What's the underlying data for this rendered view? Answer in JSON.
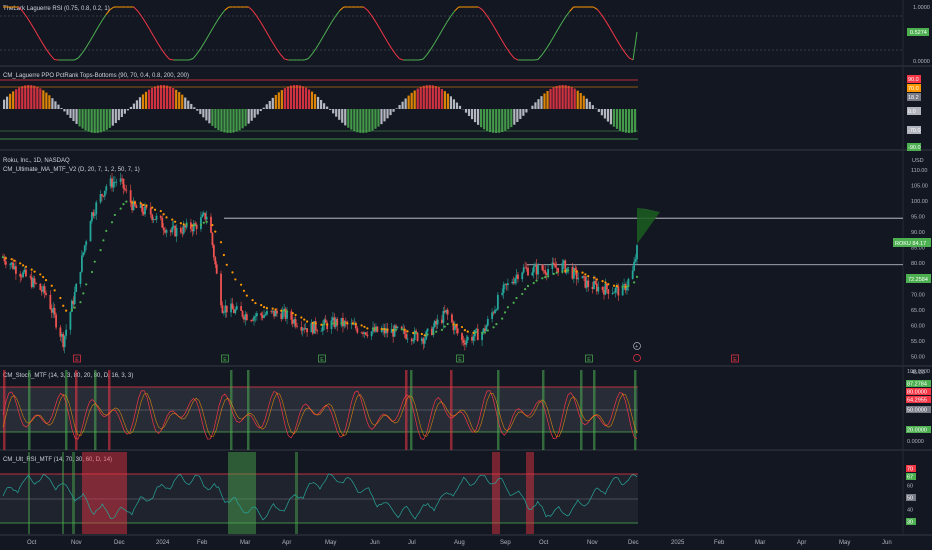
{
  "colors": {
    "background": "#131722",
    "up": "#26a69a",
    "down": "#ef5350",
    "ma_up": "#4caf50",
    "ma_down": "#ff9800",
    "rsi_up": "#4caf50",
    "rsi_down": "#f23645",
    "overbought": "#ff9800",
    "grid": "#1e222d"
  },
  "panes": {
    "rsi": {
      "title": "TheLark Laguerre RSI (0.75, 0.8, 0.2, 1)",
      "ticks": [
        "1.0000",
        "0.0000"
      ],
      "last_value_label": "0.5274"
    },
    "ppo": {
      "title": "CM_Laguerre PPO PctRank Tops-Bottoms (90, 70, 0.4, 0.8, 200, 200)",
      "tick_labels": [
        "90.0",
        "70.0",
        "18.2",
        "0.0",
        "-70.0",
        "-90.0"
      ],
      "colored": [
        {
          "label": "90.0",
          "color": "#f23645"
        },
        {
          "label": "70.0",
          "color": "#ff9800"
        },
        {
          "label": "18.2",
          "color": "#787b86"
        },
        {
          "label": "0.0",
          "color": "#b2b5be"
        },
        {
          "label": "-70.0",
          "color": "#b2b5be"
        },
        {
          "label": "-90.0",
          "color": "#4caf50"
        }
      ]
    },
    "price": {
      "currency": "USD",
      "symbol_line": "Roku, Inc., 1D, NASDAQ",
      "indicator_line": "CM_Ultimate_MA_MTF_V2 (D, 20, 7, 1, 2, 50, 7, 1)",
      "ticks": [
        "110.00",
        "105.00",
        "100.00",
        "95.00",
        "90.00",
        "85.00",
        "80.00",
        "75.00",
        "70.00",
        "65.00",
        "60.00",
        "55.00",
        "50.00",
        "45.00"
      ],
      "last_price_tag": "ROKU 84.17",
      "ma_tag": "72.2584"
    },
    "stoch": {
      "title": "CM_Stoch_MTF (14, 3, 3, 80, 20, 80, D, 16, 3, 3)",
      "ticks": [
        "100.0000",
        "0.0000"
      ],
      "tags": [
        "87.2784",
        "80.0000",
        "64.2955",
        "50.0000",
        "20.0000"
      ]
    },
    "ultrsi": {
      "title": "CM_Ult_RSI_MTF (14, 70, 30, 60, D, 14)",
      "ticks": [
        "70",
        "67",
        "60",
        "50",
        "40",
        "30"
      ]
    }
  },
  "time_axis": [
    "Oct",
    "Nov",
    "Dec",
    "2024",
    "Feb",
    "Mar",
    "Apr",
    "May",
    "Jun",
    "Jul",
    "Aug",
    "Sep",
    "Oct",
    "Nov",
    "Dec",
    "2025",
    "Feb",
    "Mar",
    "Apr",
    "May",
    "Jun"
  ],
  "events": [
    "E",
    "E",
    "E",
    "E",
    "E",
    "E"
  ],
  "chart_data": {
    "type": "candlestick",
    "symbol": "ROKU",
    "exchange": "NASDAQ",
    "interval": "1D",
    "ylim": [
      44,
      112
    ],
    "price_points": [
      {
        "date": "2023-09-20",
        "close": 82
      },
      {
        "date": "2023-10-05",
        "close": 76
      },
      {
        "date": "2023-10-20",
        "close": 70
      },
      {
        "date": "2023-11-01",
        "close": 55
      },
      {
        "date": "2023-11-10",
        "close": 72
      },
      {
        "date": "2023-11-20",
        "close": 95
      },
      {
        "date": "2023-12-01",
        "close": 105
      },
      {
        "date": "2023-12-10",
        "close": 107
      },
      {
        "date": "2023-12-20",
        "close": 98
      },
      {
        "date": "2024-01-01",
        "close": 96
      },
      {
        "date": "2024-01-15",
        "close": 90
      },
      {
        "date": "2024-02-01",
        "close": 92
      },
      {
        "date": "2024-02-10",
        "close": 96
      },
      {
        "date": "2024-02-16",
        "close": 76
      },
      {
        "date": "2024-02-20",
        "close": 66
      },
      {
        "date": "2024-03-10",
        "close": 63
      },
      {
        "date": "2024-04-01",
        "close": 64
      },
      {
        "date": "2024-04-20",
        "close": 59
      },
      {
        "date": "2024-05-10",
        "close": 61
      },
      {
        "date": "2024-06-01",
        "close": 58
      },
      {
        "date": "2024-06-20",
        "close": 58
      },
      {
        "date": "2024-07-10",
        "close": 56
      },
      {
        "date": "2024-07-25",
        "close": 64
      },
      {
        "date": "2024-08-05",
        "close": 55
      },
      {
        "date": "2024-08-20",
        "close": 58
      },
      {
        "date": "2024-09-01",
        "close": 70
      },
      {
        "date": "2024-09-15",
        "close": 78
      },
      {
        "date": "2024-10-01",
        "close": 78
      },
      {
        "date": "2024-10-15",
        "close": 79
      },
      {
        "date": "2024-11-01",
        "close": 73
      },
      {
        "date": "2024-11-10",
        "close": 72
      },
      {
        "date": "2024-11-25",
        "close": 71
      },
      {
        "date": "2024-12-02",
        "close": 77
      },
      {
        "date": "2024-12-05",
        "close": 84.17
      }
    ],
    "resistance_levels": [
      94.5,
      79.5
    ]
  }
}
